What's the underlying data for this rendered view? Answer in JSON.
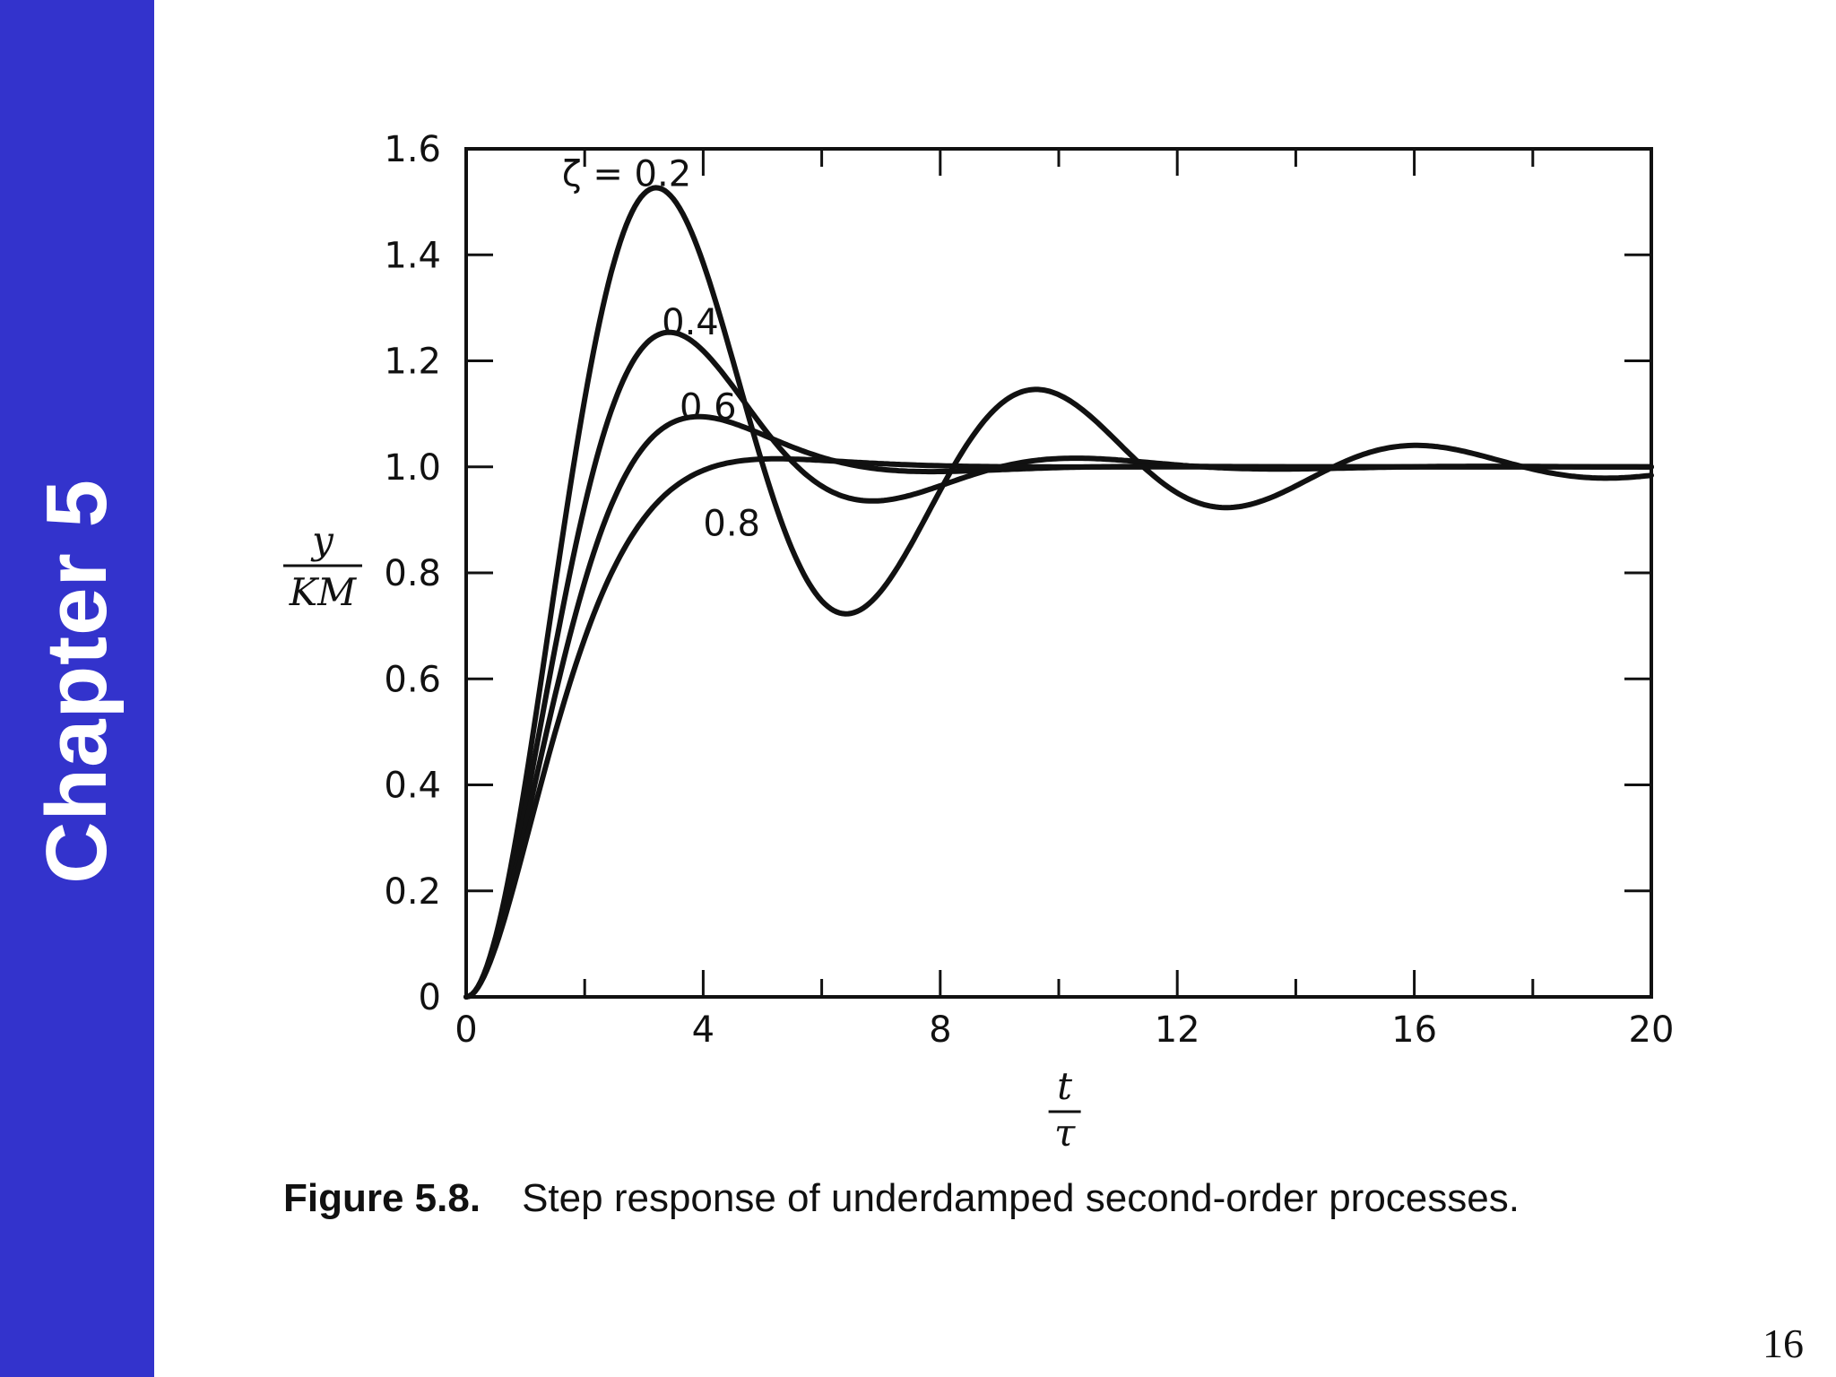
{
  "slide": {
    "chapter_label": "Chapter 5",
    "caption_number": "Figure 5.8.",
    "caption_text": "Step response of underdamped second-order processes.",
    "page_number": "16",
    "sidebar_color": "#3333cc"
  },
  "chart_data": {
    "type": "line",
    "title": "Step response of underdamped second-order processes",
    "xlabel": {
      "numerator": "t",
      "denominator": "τ"
    },
    "ylabel": {
      "numerator": "y",
      "denominator": "KM"
    },
    "xlim": [
      0,
      20
    ],
    "ylim": [
      0,
      1.6
    ],
    "xticks": [
      0,
      4,
      8,
      12,
      16,
      20
    ],
    "xtick_labels": [
      "0",
      "4",
      "8",
      "12",
      "16",
      "20"
    ],
    "yticks": [
      0,
      0.2,
      0.4,
      0.6,
      0.8,
      1.0,
      1.2,
      1.4,
      1.6
    ],
    "ytick_labels": [
      "0",
      "0.2",
      "0.4",
      "0.6",
      "0.8",
      "1.0",
      "1.2",
      "1.4",
      "1.6"
    ],
    "grid": false,
    "series": [
      {
        "name": "ζ = 0.2",
        "label": "ζ = 0.2",
        "zeta": 0.2
      },
      {
        "name": "0.4",
        "label": "0.4",
        "zeta": 0.4
      },
      {
        "name": "0.6",
        "label": "0.6",
        "zeta": 0.6
      },
      {
        "name": "0.8",
        "label": "0.8",
        "zeta": 0.8
      }
    ]
  }
}
